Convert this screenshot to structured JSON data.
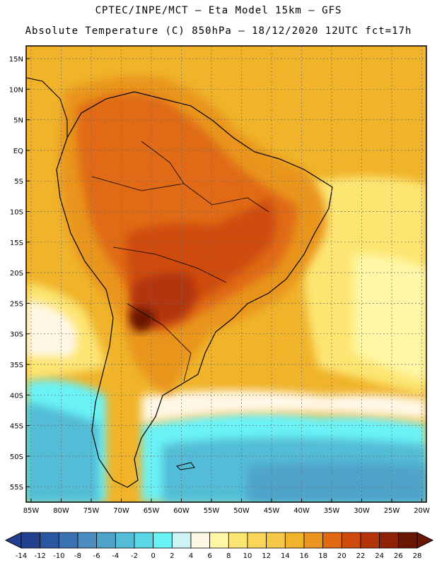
{
  "header": {
    "line1": "CPTEC/INPE/MCT –  Eta Model 15km – GFS",
    "line2": "Absolute Temperature (C) 850hPa – 18/12/2020 12UTC fct=17h"
  },
  "axes": {
    "lat_labels": [
      "15N",
      "10N",
      "5N",
      "EQ",
      "5S",
      "10S",
      "15S",
      "20S",
      "25S",
      "30S",
      "35S",
      "40S",
      "45S",
      "50S",
      "55S"
    ],
    "lon_labels": [
      "85W",
      "80W",
      "75W",
      "70W",
      "65W",
      "60W",
      "55W",
      "50W",
      "45W",
      "40W",
      "35W",
      "30W",
      "25W",
      "20W"
    ]
  },
  "colorbar": {
    "labels": [
      "-14",
      "-12",
      "-10",
      "-8",
      "-6",
      "-4",
      "-2",
      "0",
      "2",
      "4",
      "6",
      "8",
      "10",
      "12",
      "14",
      "16",
      "18",
      "20",
      "22",
      "24",
      "26",
      "28"
    ],
    "colors": [
      "#23408f",
      "#2b57a0",
      "#3a72b2",
      "#4a8cc0",
      "#4fa3c9",
      "#53bcd6",
      "#5ad6e6",
      "#6af2f5",
      "#cdf3f5",
      "#fff7e6",
      "#fff7a6",
      "#fde572",
      "#f9d65a",
      "#f5c84a",
      "#f0b32a",
      "#e9951f",
      "#e06a12",
      "#cf4b0c",
      "#b33408",
      "#8f2206",
      "#6a1604"
    ]
  },
  "legend_colors": {
    "ocean_north": "#f0b32a",
    "land_hot": "#cf4b0c",
    "core": "#8f2206",
    "south_cold": "#53bcd6"
  }
}
